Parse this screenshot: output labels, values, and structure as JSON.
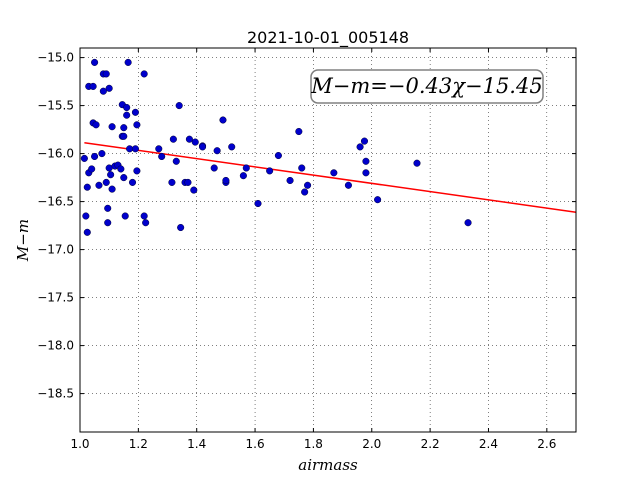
{
  "chart_data": {
    "type": "scatter",
    "title": "2021-10-01_005148",
    "xlabel": "airmass",
    "ylabel": "M−m",
    "xlim": [
      1.0,
      2.7
    ],
    "ylim": [
      -18.9,
      -14.9
    ],
    "y_inverted": true,
    "xticks": [
      1.0,
      1.2,
      1.4,
      1.6,
      1.8,
      2.0,
      2.2,
      2.4,
      2.6
    ],
    "xtick_labels": [
      "1.0",
      "1.2",
      "1.4",
      "1.6",
      "1.8",
      "2.0",
      "2.2",
      "2.4",
      "2.6"
    ],
    "yticks": [
      -15.0,
      -15.5,
      -16.0,
      -16.5,
      -17.0,
      -17.5,
      -18.0,
      -18.5
    ],
    "ytick_labels": [
      "−15.0",
      "−15.5",
      "−16.0",
      "−16.5",
      "−17.0",
      "−17.5",
      "−18.0",
      "−18.5"
    ],
    "grid": true,
    "annotation": "M−m=−0.43χ−15.45",
    "fit": {
      "slope": -0.43,
      "intercept": -15.45,
      "color": "#ff0000"
    },
    "point_color": "#0000cc",
    "points": [
      [
        1.015,
        -16.05
      ],
      [
        1.02,
        -16.65
      ],
      [
        1.025,
        -16.82
      ],
      [
        1.025,
        -16.35
      ],
      [
        1.03,
        -15.3
      ],
      [
        1.03,
        -16.2
      ],
      [
        1.04,
        -16.16
      ],
      [
        1.045,
        -15.3
      ],
      [
        1.045,
        -15.68
      ],
      [
        1.05,
        -15.05
      ],
      [
        1.05,
        -16.03
      ],
      [
        1.055,
        -15.7
      ],
      [
        1.065,
        -16.33
      ],
      [
        1.075,
        -16.0
      ],
      [
        1.08,
        -15.17
      ],
      [
        1.08,
        -15.35
      ],
      [
        1.09,
        -15.17
      ],
      [
        1.09,
        -16.3
      ],
      [
        1.095,
        -16.72
      ],
      [
        1.095,
        -16.57
      ],
      [
        1.1,
        -16.15
      ],
      [
        1.1,
        -15.32
      ],
      [
        1.105,
        -16.22
      ],
      [
        1.11,
        -15.72
      ],
      [
        1.11,
        -16.37
      ],
      [
        1.12,
        -16.13
      ],
      [
        1.13,
        -16.12
      ],
      [
        1.14,
        -16.16
      ],
      [
        1.145,
        -15.82
      ],
      [
        1.145,
        -15.49
      ],
      [
        1.15,
        -15.73
      ],
      [
        1.15,
        -15.82
      ],
      [
        1.15,
        -16.25
      ],
      [
        1.155,
        -16.65
      ],
      [
        1.16,
        -15.52
      ],
      [
        1.16,
        -15.6
      ],
      [
        1.165,
        -15.05
      ],
      [
        1.17,
        -15.95
      ],
      [
        1.18,
        -16.3
      ],
      [
        1.19,
        -15.95
      ],
      [
        1.19,
        -15.57
      ],
      [
        1.195,
        -16.18
      ],
      [
        1.195,
        -15.7
      ],
      [
        1.22,
        -15.17
      ],
      [
        1.22,
        -16.65
      ],
      [
        1.225,
        -16.72
      ],
      [
        1.27,
        -15.95
      ],
      [
        1.28,
        -16.03
      ],
      [
        1.315,
        -16.3
      ],
      [
        1.32,
        -15.85
      ],
      [
        1.33,
        -16.08
      ],
      [
        1.34,
        -15.5
      ],
      [
        1.345,
        -16.77
      ],
      [
        1.36,
        -16.3
      ],
      [
        1.37,
        -16.3
      ],
      [
        1.375,
        -15.85
      ],
      [
        1.39,
        -16.38
      ],
      [
        1.395,
        -15.88
      ],
      [
        1.42,
        -15.92
      ],
      [
        1.42,
        -15.93
      ],
      [
        1.46,
        -16.15
      ],
      [
        1.47,
        -15.97
      ],
      [
        1.49,
        -15.65
      ],
      [
        1.5,
        -16.3
      ],
      [
        1.5,
        -16.28
      ],
      [
        1.52,
        -15.93
      ],
      [
        1.56,
        -16.23
      ],
      [
        1.57,
        -16.15
      ],
      [
        1.61,
        -16.52
      ],
      [
        1.65,
        -16.18
      ],
      [
        1.68,
        -16.02
      ],
      [
        1.72,
        -16.28
      ],
      [
        1.75,
        -15.77
      ],
      [
        1.76,
        -16.15
      ],
      [
        1.77,
        -16.4
      ],
      [
        1.78,
        -16.33
      ],
      [
        1.87,
        -16.2
      ],
      [
        1.92,
        -16.33
      ],
      [
        1.96,
        -15.93
      ],
      [
        1.975,
        -15.87
      ],
      [
        1.98,
        -16.08
      ],
      [
        1.98,
        -16.2
      ],
      [
        2.02,
        -16.48
      ],
      [
        2.155,
        -16.1
      ],
      [
        2.33,
        -16.72
      ]
    ]
  }
}
